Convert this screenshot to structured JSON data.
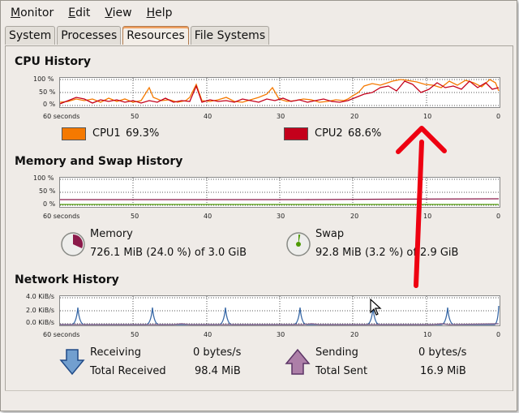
{
  "menu": [
    {
      "label": "Monitor",
      "mnemonic": "M",
      "rest": "onitor"
    },
    {
      "label": "Edit",
      "mnemonic": "E",
      "rest": "dit"
    },
    {
      "label": "View",
      "mnemonic": "V",
      "rest": "iew"
    },
    {
      "label": "Help",
      "mnemonic": "H",
      "rest": "elp"
    }
  ],
  "tabs": [
    "System",
    "Processes",
    "Resources",
    "File Systems"
  ],
  "active_tab": "Resources",
  "cpu": {
    "title": "CPU History",
    "y_ticks": [
      "100 %",
      "50 %",
      "0 %"
    ],
    "x_ticks": [
      "60 seconds",
      "50",
      "40",
      "30",
      "20",
      "10",
      "0"
    ],
    "legend": [
      {
        "name": "CPU1",
        "value": "69.3%",
        "color": "#f57900"
      },
      {
        "name": "CPU2",
        "value": "68.6%",
        "color": "#c4001b"
      }
    ]
  },
  "memory": {
    "title": "Memory and Swap History",
    "y_ticks": [
      "100 %",
      "50 %",
      "0 %"
    ],
    "x_ticks": [
      "60 seconds",
      "50",
      "40",
      "30",
      "20",
      "10",
      "0"
    ],
    "memory_label": "Memory",
    "memory_value": "726.1 MiB (24.0 %) of 3.0 GiB",
    "swap_label": "Swap",
    "swap_value": "92.8 MiB (3.2 %) of 2.9 GiB",
    "memory_color": "#8b1a4a",
    "swap_color": "#4e9a06"
  },
  "network": {
    "title": "Network History",
    "y_ticks": [
      "4.0 KiB/s",
      "2.0 KiB/s",
      "0.0 KiB/s"
    ],
    "x_ticks": [
      "60 seconds",
      "50",
      "40",
      "30",
      "20",
      "10",
      "0"
    ],
    "receiving_label": "Receiving",
    "receiving_value": "0 bytes/s",
    "total_received_label": "Total Received",
    "total_received_value": "98.4 MiB",
    "sending_label": "Sending",
    "sending_value": "0 bytes/s",
    "total_sent_label": "Total Sent",
    "total_sent_value": "16.9 MiB",
    "receiving_color": "#3465a4",
    "sending_color": "#75507b"
  },
  "annotation_color": "#ee0011"
}
